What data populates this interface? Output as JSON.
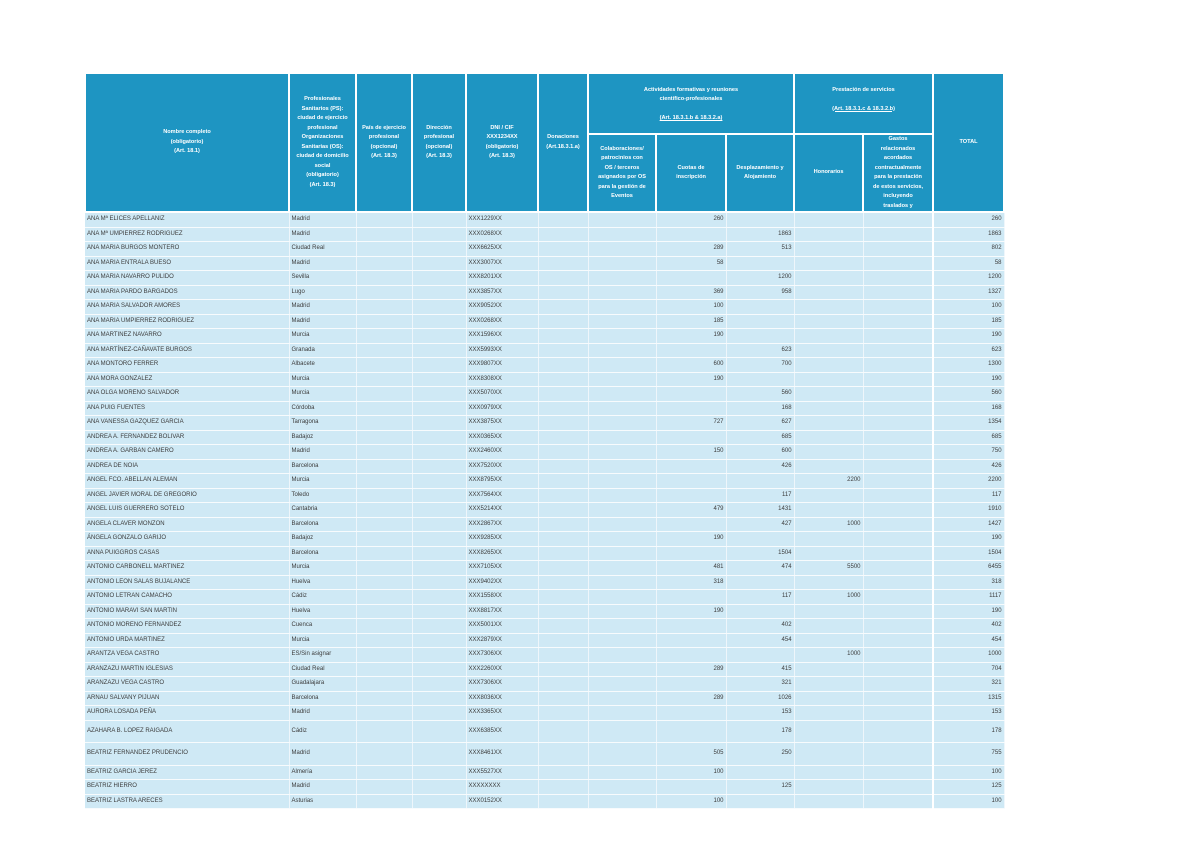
{
  "colors": {
    "header_bg": "#1e95c2",
    "header_text": "#ffffff",
    "row_bg": "#cfe9f5",
    "row_text": "#3c3c3c",
    "page_bg": "#ffffff"
  },
  "header": {
    "nombre": "Nombre completo\n(obligatorio)\n(Art. 18.1)",
    "ciudad": "Profesionales\nSanitarios (PS):\nciudad de ejercicio\nprofesional\nOrganizaciones\nSanitarias (OS):\nciudad de domicilio\nsocial\n(obligatorio)\n(Art. 18.3)",
    "pais": "País de ejercicio\nprofesional\n(opcional)\n(Art. 18.3)",
    "direccion": "Dirección\nprofesional\n(opcional)\n(Art. 18.3)",
    "dni": "DNI / CIF\nXXX1234XX\n(obligatorio)\n(Art. 18.3)",
    "donaciones": "Donaciones\n(Art.18.3.1.a)",
    "grupo_actividades": {
      "title": "Actividades formativas y reuniones\ncientífico-profesionales",
      "art": "(Art. 18.3.1.b & 18.3.2.a)"
    },
    "colaboraciones": "Colaboraciones/\npatrocinios con\nOS / terceros\nasignados por OS\npara la gestión de\nEventos",
    "cuotas": "Cuotas de\ninscripción",
    "desplazamiento": "Desplazamiento y\nAlojamiento",
    "grupo_prestacion": {
      "title": "Prestación de servicios",
      "art": "(Art. 18.3.1.c & 18.3.2.b)"
    },
    "honorarios": "Honorarios",
    "gastos": "Gastos\nrelacionados\nacordados\ncontractualmente\npara la prestación\nde estos servicios,\nincluyendo\ntraslados y",
    "total": "TOTAL"
  },
  "rows": [
    {
      "name": "ANA Mª ELICES APELLANIZ",
      "city": "Madrid",
      "dni": "XXX1229XX",
      "cuotas": 260,
      "total": 260
    },
    {
      "name": "ANA Mª UMPIERREZ RODRIGUEZ",
      "city": "Madrid",
      "dni": "XXX0268XX",
      "desplazamiento": 1863,
      "total": 1863
    },
    {
      "name": "ANA MARIA BURGOS MONTERO",
      "city": "Ciudad Real",
      "dni": "XXX6625XX",
      "cuotas": 289,
      "desplazamiento": 513,
      "total": 802
    },
    {
      "name": "ANA MARIA ENTRALA BUESO",
      "city": "Madrid",
      "dni": "XXX3007XX",
      "cuotas": 58,
      "total": 58
    },
    {
      "name": "ANA MARIA NAVARRO PULIDO",
      "city": "Sevilla",
      "dni": "XXX8201XX",
      "desplazamiento": 1200,
      "total": 1200
    },
    {
      "name": "ANA MARIA PARDO BARGADOS",
      "city": "Lugo",
      "dni": "XXX3857XX",
      "cuotas": 369,
      "desplazamiento": 958,
      "total": 1327
    },
    {
      "name": "ANA MARIA SALVADOR AMORES",
      "city": "Madrid",
      "dni": "XXX9052XX",
      "cuotas": 100,
      "total": 100
    },
    {
      "name": "ANA MARIA UMPIERREZ RODRIGUEZ",
      "city": "Madrid",
      "dni": "XXX0268XX",
      "cuotas": 185,
      "total": 185
    },
    {
      "name": "ANA MARTINEZ NAVARRO",
      "city": "Murcia",
      "dni": "XXX1596XX",
      "cuotas": 190,
      "total": 190
    },
    {
      "name": "ANA MARTÍNEZ-CAÑAVATE BURGOS",
      "city": "Granada",
      "dni": "XXX5993XX",
      "desplazamiento": 623,
      "total": 623
    },
    {
      "name": "ANA MONTORO FERRER",
      "city": "Albacete",
      "dni": "XXX9807XX",
      "cuotas": 600,
      "desplazamiento": 700,
      "total": 1300
    },
    {
      "name": "ANA MORA GONZALEZ",
      "city": "Murcia",
      "dni": "XXX8308XX",
      "cuotas": 190,
      "total": 190
    },
    {
      "name": "ANA OLGA MORENO SALVADOR",
      "city": "Murcia",
      "dni": "XXX5070XX",
      "desplazamiento": 560,
      "total": 560
    },
    {
      "name": "ANA PUIG FUENTES",
      "city": "Córdoba",
      "dni": "XXX0979XX",
      "desplazamiento": 168,
      "total": 168
    },
    {
      "name": "ANA VANESSA GAZQUEZ GARCIA",
      "city": "Tarragona",
      "dni": "XXX3875XX",
      "cuotas": 727,
      "desplazamiento": 627,
      "total": 1354
    },
    {
      "name": "ANDREA A. FERNANDEZ BOLIVAR",
      "city": "Badajoz",
      "dni": "XXX0365XX",
      "desplazamiento": 685,
      "total": 685
    },
    {
      "name": "ANDREA A. GARBAN CAMERO",
      "city": "Madrid",
      "dni": "XXX2460XX",
      "cuotas": 150,
      "desplazamiento": 600,
      "total": 750
    },
    {
      "name": "ANDREA DE NOIA",
      "city": "Barcelona",
      "dni": "XXX7520XX",
      "desplazamiento": 426,
      "total": 426
    },
    {
      "name": "ANGEL FCO. ABELLAN ALEMAN",
      "city": "Murcia",
      "dni": "XXX8795XX",
      "honorarios": 2200,
      "total": 2200
    },
    {
      "name": "ANGEL JAVIER MORAL DE GREGORIO",
      "city": "Toledo",
      "dni": "XXX7564XX",
      "desplazamiento": 117,
      "total": 117
    },
    {
      "name": "ANGEL LUIS GUERRERO SOTELO",
      "city": "Cantabria",
      "dni": "XXX5214XX",
      "cuotas": 479,
      "desplazamiento": 1431,
      "total": 1910
    },
    {
      "name": "ANGELA CLAVER MONZON",
      "city": "Barcelona",
      "dni": "XXX2867XX",
      "desplazamiento": 427,
      "honorarios": 1000,
      "total": 1427
    },
    {
      "name": "ÁNGELA GONZALO GARIJO",
      "city": "Badajoz",
      "dni": "XXX9285XX",
      "cuotas": 190,
      "total": 190
    },
    {
      "name": "ANNA PUIGGROS CASAS",
      "city": "Barcelona",
      "dni": "XXX8265XX",
      "desplazamiento": 1504,
      "total": 1504
    },
    {
      "name": "ANTONIO CARBONELL MARTINEZ",
      "city": "Murcia",
      "dni": "XXX7105XX",
      "cuotas": 481,
      "desplazamiento": 474,
      "honorarios": 5500,
      "total": 6455
    },
    {
      "name": "ANTONIO LEON SALAS BUJALANCE",
      "city": "Huelva",
      "dni": "XXX9402XX",
      "cuotas": 318,
      "total": 318
    },
    {
      "name": "ANTONIO LETRAN CAMACHO",
      "city": "Cádiz",
      "dni": "XXX1558XX",
      "desplazamiento": 117,
      "honorarios": 1000,
      "total": 1117
    },
    {
      "name": "ANTONIO MARAVI SAN MARTIN",
      "city": "Huelva",
      "dni": "XXX8817XX",
      "cuotas": 190,
      "total": 190
    },
    {
      "name": "ANTONIO MORENO FERNANDEZ",
      "city": "Cuenca",
      "dni": "XXX5001XX",
      "desplazamiento": 402,
      "total": 402
    },
    {
      "name": "ANTONIO URDA MARTINEZ",
      "city": "Murcia",
      "dni": "XXX2879XX",
      "desplazamiento": 454,
      "total": 454
    },
    {
      "name": "ARANTZA VEGA CASTRO",
      "city": "ES/Sin asignar",
      "dni": "XXX7306XX",
      "honorarios": 1000,
      "total": 1000
    },
    {
      "name": "ARANZAZU MARTIN IGLESIAS",
      "city": "Ciudad Real",
      "dni": "XXX2260XX",
      "cuotas": 289,
      "desplazamiento": 415,
      "total": 704
    },
    {
      "name": "ARANZAZU VEGA CASTRO",
      "city": "Guadalajara",
      "dni": "XXX7306XX",
      "desplazamiento": 321,
      "total": 321
    },
    {
      "name": "ARNAU SALVANY PIJUAN",
      "city": "Barcelona",
      "dni": "XXX8036XX",
      "cuotas": 289,
      "desplazamiento": 1026,
      "total": 1315
    },
    {
      "name": "AURORA LOSADA PEÑA",
      "city": "Madrid",
      "dni": "XXX3365XX",
      "desplazamiento": 153,
      "total": 153
    },
    {
      "name": "AZAHARA B. LOPEZ RAIGADA",
      "city": "Cádiz",
      "dni": "XXX6385XX",
      "desplazamiento": 178,
      "total": 178,
      "tall": true
    },
    {
      "name": "BEATRIZ FERNANDEZ PRUDENCIO",
      "city": "Madrid",
      "dni": "XXX8461XX",
      "cuotas": 505,
      "desplazamiento": 250,
      "total": 755,
      "tall": true
    },
    {
      "name": "BEATRIZ GARCIA JEREZ",
      "city": "Almería",
      "dni": "XXX5527XX",
      "cuotas": 100,
      "total": 100
    },
    {
      "name": "BEATRIZ HIERRO",
      "city": "Madrid",
      "dni": "XXXXXXXX",
      "desplazamiento": 125,
      "total": 125
    },
    {
      "name": "BEATRIZ LASTRA ARECES",
      "city": "Asturias",
      "dni": "XXX0152XX",
      "cuotas": 100,
      "total": 100
    }
  ]
}
